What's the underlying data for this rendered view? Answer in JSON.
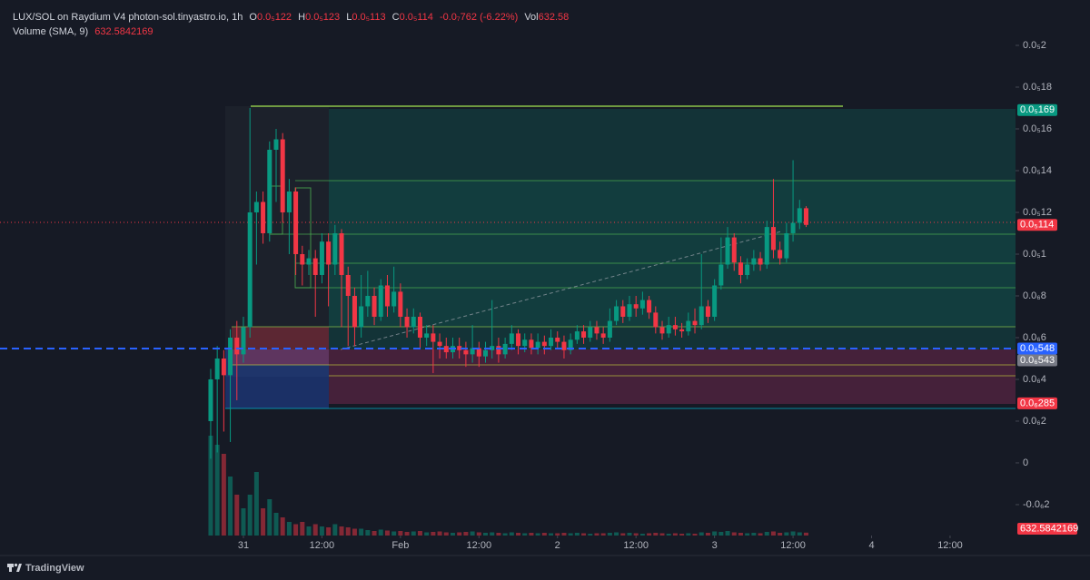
{
  "chart_data": {
    "type": "candlestick",
    "header": {
      "symbol": "LUX/SOL on Raydium V4 photon-sol.tinyastro.io, 1h",
      "ohlc": [
        {
          "key": "O",
          "value": "0.0₅122"
        },
        {
          "key": "H",
          "value": "0.0₅123"
        },
        {
          "key": "L",
          "value": "0.0₅113"
        },
        {
          "key": "C",
          "value": "0.0₅114"
        }
      ],
      "change": "-0.0₇762 (-6.22%)",
      "vol_key": "Vol",
      "vol_value": "632.58",
      "indicator": "Volume (SMA, 9)"
    },
    "up_color": "#089981",
    "down_color": "#f23645",
    "xlim": [
      -32.2,
      123.0
    ],
    "xticks": [
      {
        "value": 5,
        "label": "31"
      },
      {
        "value": 17,
        "label": "12:00"
      },
      {
        "value": 29,
        "label": "Feb"
      },
      {
        "value": 41,
        "label": "12:00"
      },
      {
        "value": 53,
        "label": "2"
      },
      {
        "value": 65,
        "label": "12:00"
      },
      {
        "value": 77,
        "label": "3"
      },
      {
        "value": 89,
        "label": "12:00"
      },
      {
        "value": 101,
        "label": "4"
      },
      {
        "value": 113,
        "label": "12:00"
      }
    ],
    "ylim": [
      -3.48e-07,
      2.087e-06
    ],
    "yticks": [
      {
        "value": 2e-06,
        "label": "0.0₅2"
      },
      {
        "value": 1.8e-06,
        "label": "0.0₅18"
      },
      {
        "value": 1.6e-06,
        "label": "0.0₅16"
      },
      {
        "value": 1.4e-06,
        "label": "0.0₅14"
      },
      {
        "value": 1.2e-06,
        "label": "0.0₅12"
      },
      {
        "value": 1e-06,
        "label": "0.0₅1"
      },
      {
        "value": 8e-07,
        "label": "0.0₆8"
      },
      {
        "value": 6e-07,
        "label": "0.0₆6"
      },
      {
        "value": 4e-07,
        "label": "0.0₆4"
      },
      {
        "value": 2e-07,
        "label": "0.0₆2"
      },
      0,
      {
        "value": -2e-07,
        "label": "-0.0₆2"
      }
    ],
    "grid": false,
    "price_labels": [
      {
        "value": 1.69e-06,
        "label": "0.0₅169",
        "color": "#089981"
      },
      {
        "value": 1.14e-06,
        "label": "0.0₅114",
        "color": "#f23645"
      },
      {
        "value": 5.48e-07,
        "label": "0.0₆548",
        "color": "#2962ff"
      },
      {
        "value": 5.43e-07,
        "label": "0.0₆543",
        "color": "#787b86"
      },
      {
        "value": 2.85e-07,
        "label": "0.0₆285",
        "color": "#f23645"
      }
    ],
    "x": [
      0,
      1,
      2,
      3,
      4,
      5,
      6,
      7,
      8,
      9,
      10,
      11,
      12,
      13,
      14,
      15,
      16,
      17,
      18,
      19,
      20,
      21,
      22,
      23,
      24,
      25,
      26,
      27,
      28,
      29,
      30,
      31,
      32,
      33,
      34,
      35,
      36,
      37,
      38,
      39,
      40,
      41,
      42,
      43,
      44,
      45,
      46,
      47,
      48,
      49,
      50,
      51,
      52,
      53,
      54,
      55,
      56,
      57,
      58,
      59,
      60,
      61,
      62,
      63,
      64,
      65,
      66,
      67,
      68,
      69,
      70,
      71,
      72,
      73,
      74,
      75,
      76,
      77,
      78,
      79,
      80,
      81,
      82,
      83,
      84,
      85,
      86,
      87,
      88,
      89,
      90,
      91
    ],
    "open": [
      2e-07,
      4e-07,
      5e-07,
      4.2e-07,
      6e-07,
      5.2e-07,
      6.5e-07,
      1.2e-06,
      1.25e-06,
      1.1e-06,
      1.5e-06,
      1.55e-06,
      1.2e-06,
      1.3e-06,
      1e-06,
      9.5e-07,
      9.8e-07,
      9e-07,
      1.06e-06,
      9.5e-07,
      1.1e-06,
      9e-07,
      8e-07,
      6.5e-07,
      7.5e-07,
      8e-07,
      7e-07,
      8.5e-07,
      7.5e-07,
      8.2e-07,
      7e-07,
      6.5e-07,
      7e-07,
      6e-07,
      6.2e-07,
      5.8e-07,
      5.6e-07,
      5.3e-07,
      5.6e-07,
      5.4e-07,
      5.2e-07,
      5.5e-07,
      5.1e-07,
      5.4e-07,
      5.6e-07,
      5.2e-07,
      5.7e-07,
      6.2e-07,
      5.6e-07,
      5.9e-07,
      5.5e-07,
      5.8e-07,
      5.6e-07,
      6e-07,
      5.8e-07,
      5.4e-07,
      5.9e-07,
      6.3e-07,
      6e-07,
      6.5e-07,
      6.2e-07,
      6e-07,
      6.8e-07,
      7.5e-07,
      7e-07,
      7.6e-07,
      7.4e-07,
      7.8e-07,
      7.2e-07,
      6.5e-07,
      6.2e-07,
      6.6e-07,
      6.4e-07,
      6.3e-07,
      6.8e-07,
      6.6e-07,
      7.5e-07,
      7e-07,
      8.5e-07,
      9.5e-07,
      1.08e-06,
      9.6e-07,
      9e-07,
      9.5e-07,
      9.8e-07,
      9.5e-07,
      1.13e-06,
      1.02e-06,
      9.8e-07,
      1.1e-06,
      1.15e-06,
      1.22e-06
    ],
    "high": [
      4.5e-07,
      5.6e-07,
      5.4e-07,
      6.4e-07,
      6.8e-07,
      7e-07,
      1.7e-06,
      1.3e-06,
      1.3e-06,
      1.54e-06,
      1.6e-06,
      1.58e-06,
      1.36e-06,
      1.32e-06,
      1.04e-06,
      1.02e-06,
      1.02e-06,
      1.1e-06,
      1.1e-06,
      1.14e-06,
      1.12e-06,
      9.4e-07,
      8.4e-07,
      9e-07,
      9.2e-07,
      8.4e-07,
      8.8e-07,
      9e-07,
      9.4e-07,
      8.6e-07,
      7.4e-07,
      7.4e-07,
      7.2e-07,
      6.6e-07,
      6.6e-07,
      6.2e-07,
      6e-07,
      6e-07,
      6e-07,
      5.8e-07,
      6.6e-07,
      5.8e-07,
      5.8e-07,
      7.8e-07,
      6e-07,
      6e-07,
      6.6e-07,
      6.4e-07,
      6.2e-07,
      6.2e-07,
      6.2e-07,
      6.1e-07,
      6.4e-07,
      6.3e-07,
      6.1e-07,
      6.2e-07,
      6.6e-07,
      6.6e-07,
      6.8e-07,
      6.8e-07,
      6.5e-07,
      7.4e-07,
      7.8e-07,
      7.8e-07,
      8e-07,
      8e-07,
      8.2e-07,
      8e-07,
      7.5e-07,
      6.8e-07,
      7e-07,
      7e-07,
      6.7e-07,
      7.2e-07,
      7.4e-07,
      1e-06,
      7.8e-07,
      8.8e-07,
      1.08e-06,
      1.13e-06,
      1.1e-06,
      9.9e-07,
      9.8e-07,
      1.02e-06,
      1.01e-06,
      1.16e-06,
      1.36e-06,
      1.06e-06,
      1.15e-06,
      1.45e-06,
      1.26e-06,
      1.23e-06
    ],
    "low": [
      2e-08,
      5e-08,
      1.5e-07,
      1e-07,
      3e-07,
      4.8e-07,
      6e-07,
      9.5e-07,
      1.05e-06,
      1.06e-06,
      1.25e-06,
      1.15e-06,
      1e-06,
      9e-07,
      8.5e-07,
      9e-07,
      7e-07,
      8.6e-07,
      7.5e-07,
      9e-07,
      6.5e-07,
      5.6e-07,
      5.6e-07,
      6e-07,
      7e-07,
      6.6e-07,
      6.8e-07,
      7e-07,
      7.2e-07,
      6.5e-07,
      6e-07,
      6.2e-07,
      5.5e-07,
      5.6e-07,
      4.3e-07,
      5e-07,
      5e-07,
      5e-07,
      5e-07,
      4.6e-07,
      4.8e-07,
      4.6e-07,
      4.8e-07,
      5e-07,
      4.8e-07,
      5e-07,
      5.4e-07,
      5.2e-07,
      5.3e-07,
      5.2e-07,
      5.2e-07,
      5.2e-07,
      5.4e-07,
      5.5e-07,
      5e-07,
      5.2e-07,
      5.7e-07,
      5.7e-07,
      5.8e-07,
      5.9e-07,
      5.7e-07,
      5.8e-07,
      6.6e-07,
      6.7e-07,
      6.8e-07,
      7e-07,
      7.1e-07,
      6.9e-07,
      6.2e-07,
      5.9e-07,
      6e-07,
      6.1e-07,
      6e-07,
      6.1e-07,
      6.2e-07,
      6.4e-07,
      6.7e-07,
      6.8e-07,
      8.3e-07,
      9.3e-07,
      9.2e-07,
      8.6e-07,
      8.8e-07,
      9.2e-07,
      9.2e-07,
      9.3e-07,
      9.8e-07,
      9.5e-07,
      9.6e-07,
      1.06e-06,
      1.12e-06,
      1.13e-06
    ],
    "close": [
      4e-07,
      5e-07,
      4.2e-07,
      6e-07,
      5.2e-07,
      6.5e-07,
      1.2e-06,
      1.25e-06,
      1.1e-06,
      1.5e-06,
      1.55e-06,
      1.2e-06,
      1.3e-06,
      1e-06,
      9.5e-07,
      9.8e-07,
      9e-07,
      1.06e-06,
      9.5e-07,
      1.1e-06,
      9e-07,
      8e-07,
      6.5e-07,
      7.5e-07,
      8e-07,
      7e-07,
      8.5e-07,
      7.5e-07,
      8.2e-07,
      7e-07,
      6.5e-07,
      7e-07,
      6e-07,
      6.2e-07,
      5.8e-07,
      5.6e-07,
      5.3e-07,
      5.6e-07,
      5.4e-07,
      5.2e-07,
      5.5e-07,
      5.1e-07,
      5.4e-07,
      5.6e-07,
      5.2e-07,
      5.7e-07,
      6.2e-07,
      5.6e-07,
      5.9e-07,
      5.5e-07,
      5.8e-07,
      5.6e-07,
      6e-07,
      5.8e-07,
      5.4e-07,
      5.9e-07,
      6.3e-07,
      6e-07,
      6.5e-07,
      6.2e-07,
      6e-07,
      6.8e-07,
      7.5e-07,
      7e-07,
      7.6e-07,
      7.4e-07,
      7.8e-07,
      7.2e-07,
      6.5e-07,
      6.2e-07,
      6.6e-07,
      6.4e-07,
      6.3e-07,
      6.8e-07,
      6.6e-07,
      7.5e-07,
      7e-07,
      8.5e-07,
      9.5e-07,
      1.08e-06,
      9.6e-07,
      9e-07,
      9.5e-07,
      9.8e-07,
      9.5e-07,
      1.13e-06,
      1.02e-06,
      9.8e-07,
      1.1e-06,
      1.15e-06,
      1.22e-06,
      1.14e-06
    ],
    "volume": [
      22000,
      20000,
      18000,
      13000,
      9000,
      6000,
      9000,
      14000,
      6000,
      8000,
      5000,
      4000,
      3000,
      2500,
      3000,
      2000,
      2500,
      2000,
      1800,
      2500,
      2000,
      1800,
      1500,
      1500,
      1200,
      1000,
      1300,
      1100,
      900,
      1000,
      800,
      900,
      1000,
      700,
      800,
      900,
      700,
      600,
      700,
      800,
      900,
      700,
      600,
      700,
      600,
      500,
      700,
      600,
      500,
      600,
      500,
      600,
      500,
      500,
      600,
      500,
      600,
      500,
      400,
      500,
      500,
      600,
      700,
      500,
      600,
      500,
      400,
      500,
      600,
      500,
      400,
      500,
      400,
      500,
      400,
      700,
      600,
      900,
      800,
      1000,
      700,
      600,
      500,
      600,
      500,
      800,
      900,
      600,
      700,
      900,
      700,
      632.5842169
    ]
  },
  "footer": {
    "brand": "TradingView"
  }
}
